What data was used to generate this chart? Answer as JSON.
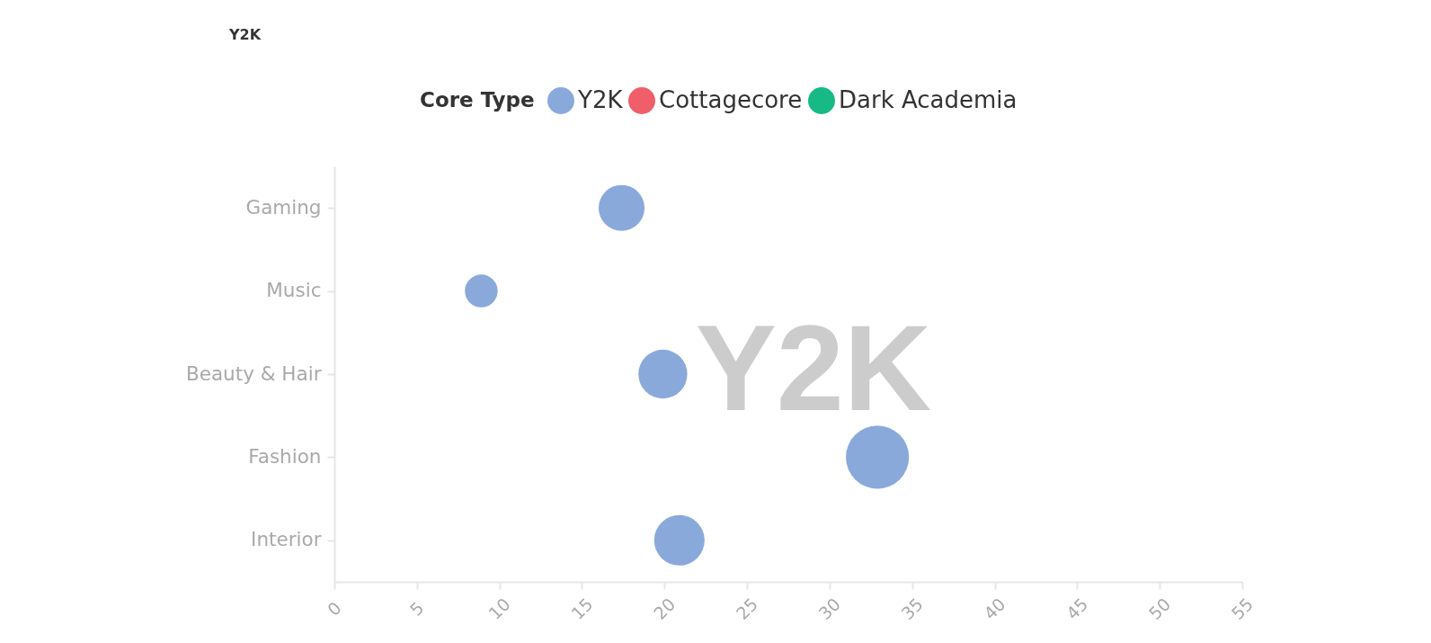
{
  "chart_data": {
    "type": "bubble",
    "orientation": "horizontal",
    "legend_title": "Core Type",
    "legend": "top",
    "marker": "circle",
    "categories": [
      "Gaming",
      "Music",
      "Beauty & Hair",
      "Fashion",
      "Interior"
    ],
    "series": [
      {
        "name": "Y2K",
        "color": "#8aa9db",
        "values": [
          17.4,
          8.9,
          19.9,
          32.9,
          20.9
        ],
        "sizes": [
          0.53,
          0.27,
          0.6,
          1,
          0.64
        ]
      },
      {
        "name": "Cottagecore",
        "color": "#ef5e69",
        "values": [
          null,
          null,
          null,
          null,
          null
        ]
      },
      {
        "name": "Dark Academia",
        "color": "#17b985",
        "values": [
          null,
          null,
          null,
          null,
          null
        ]
      }
    ],
    "xlim": [
      0,
      55
    ],
    "xticks": [
      0,
      5,
      10,
      15,
      20,
      25,
      30,
      35,
      40,
      45,
      50,
      55
    ],
    "annotations": [
      "Y2K",
      "Y2K"
    ]
  }
}
